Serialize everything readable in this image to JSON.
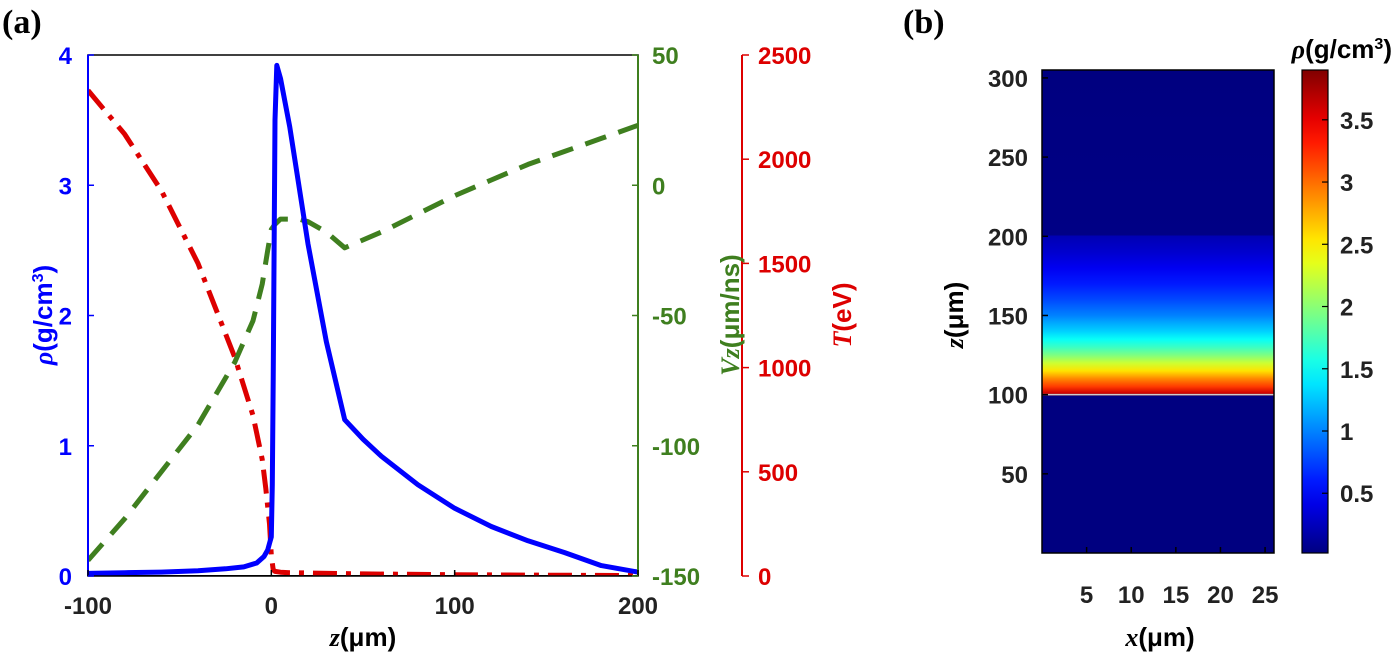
{
  "panels": {
    "a": {
      "label": "(a)"
    },
    "b": {
      "label": "(b)"
    }
  },
  "chart_data": [
    {
      "type": "line",
      "panel": "(a)",
      "x_axis": {
        "label_symbol": "z",
        "label_unit": "(μm)",
        "range": [
          -100,
          200
        ],
        "ticks": [
          -100,
          0,
          100,
          200
        ],
        "tick_labels": [
          "-100",
          "0",
          "100",
          "200"
        ]
      },
      "y_axes": [
        {
          "side": "left",
          "label_symbol": "ρ",
          "label_unit": "(g/cm",
          "label_sup": "3",
          "label_close": ")",
          "color": "#0000ff",
          "range": [
            0,
            4
          ],
          "ticks": [
            0,
            1,
            2,
            3,
            4
          ],
          "tick_labels": [
            "0",
            "1",
            "2",
            "3",
            "4"
          ]
        },
        {
          "side": "right",
          "label_symbol": "Vz",
          "label_unit": "(μm/ns)",
          "color": "#3f7f1f",
          "range": [
            -150,
            50
          ],
          "ticks": [
            -150,
            -100,
            -50,
            0,
            50
          ],
          "tick_labels": [
            "-150",
            "-100",
            "-50",
            "0",
            "50"
          ]
        },
        {
          "side": "right-outer",
          "label_symbol": "T",
          "label_unit": "(eV)",
          "color": "#dd0000",
          "range": [
            0,
            2500
          ],
          "ticks": [
            0,
            500,
            1000,
            1500,
            2000,
            2500
          ],
          "tick_labels": [
            "0",
            "500",
            "1000",
            "1500",
            "2000",
            "2500"
          ]
        }
      ],
      "series": [
        {
          "axis": 0,
          "color": "#0000ff",
          "style": "solid",
          "x": [
            -100,
            -80,
            -60,
            -40,
            -25,
            -15,
            -8,
            -4,
            -2,
            -1,
            0,
            0.5,
            1,
            1.5,
            2,
            3,
            5,
            10,
            20,
            30,
            40,
            50,
            60,
            80,
            100,
            120,
            140,
            160,
            180,
            200
          ],
          "y": [
            0.02,
            0.025,
            0.03,
            0.04,
            0.055,
            0.07,
            0.1,
            0.15,
            0.2,
            0.25,
            0.3,
            0.7,
            1.5,
            2.5,
            3.5,
            3.92,
            3.82,
            3.45,
            2.55,
            1.8,
            1.2,
            1.05,
            0.92,
            0.7,
            0.52,
            0.38,
            0.27,
            0.18,
            0.08,
            0.03
          ]
        },
        {
          "axis": 1,
          "color": "#3f7f1f",
          "style": "dashed",
          "x": [
            -100,
            -80,
            -60,
            -40,
            -20,
            -10,
            -5,
            -2,
            0,
            2,
            5,
            10,
            15,
            20,
            30,
            40,
            60,
            80,
            100,
            120,
            140,
            160,
            180,
            200
          ],
          "y": [
            -144,
            -128,
            -110,
            -92,
            -68,
            -52,
            -38,
            -25,
            -17,
            -15,
            -13,
            -13,
            -13,
            -14,
            -18,
            -24,
            -18,
            -11,
            -4,
            2,
            8,
            13,
            18,
            23
          ]
        },
        {
          "axis": 2,
          "color": "#dd0000",
          "style": "dashdot",
          "x": [
            -100,
            -80,
            -60,
            -40,
            -20,
            -10,
            -5,
            -3,
            -1,
            0,
            1,
            2,
            5,
            10,
            50,
            100,
            150,
            200
          ],
          "y": [
            2330,
            2120,
            1850,
            1500,
            1050,
            770,
            560,
            420,
            250,
            100,
            30,
            22,
            18,
            16,
            10,
            6,
            4,
            2
          ]
        }
      ]
    },
    {
      "type": "heatmap",
      "panel": "(b)",
      "x_axis": {
        "label_symbol": "x",
        "label_unit": "(μm)",
        "range": [
          0,
          26
        ],
        "ticks": [
          5,
          10,
          15,
          20,
          25
        ],
        "tick_labels": [
          "5",
          "10",
          "15",
          "20",
          "25"
        ]
      },
      "y_axis": {
        "label_symbol": "z",
        "label_unit": "(μm)",
        "range": [
          0,
          305
        ],
        "ticks": [
          50,
          100,
          150,
          200,
          250,
          300
        ],
        "tick_labels": [
          "50",
          "100",
          "150",
          "200",
          "250",
          "300"
        ]
      },
      "colorbar": {
        "label_symbol": "ρ",
        "label_unit": "(g/cm",
        "label_sup": "3",
        "label_close": ")",
        "range": [
          0.02,
          3.9
        ],
        "ticks": [
          0.5,
          1,
          1.5,
          2,
          2.5,
          3,
          3.5
        ],
        "tick_labels": [
          "0.5",
          "1",
          "1.5",
          "2",
          "2.5",
          "3",
          "3.5"
        ],
        "colormap": "jet"
      },
      "profile_z": [
        0,
        99,
        100,
        101,
        105,
        110,
        115,
        120,
        125,
        130,
        135,
        140,
        145,
        150,
        160,
        170,
        180,
        190,
        200,
        201,
        305
      ],
      "profile_rho": [
        0.02,
        0.02,
        3.9,
        3.6,
        3.2,
        2.9,
        2.55,
        2.25,
        1.95,
        1.7,
        1.5,
        1.3,
        1.15,
        1.0,
        0.78,
        0.6,
        0.45,
        0.32,
        0.22,
        0.04,
        0.02
      ]
    }
  ]
}
